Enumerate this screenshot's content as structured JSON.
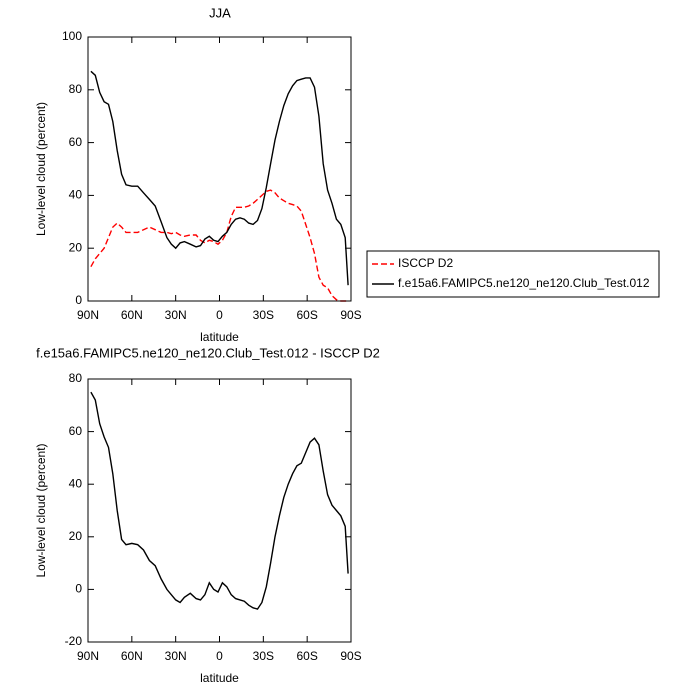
{
  "chart_data": [
    {
      "type": "line",
      "title": "JJA",
      "y_label": "Low-level cloud (percent)",
      "x_label": "latitude",
      "x": [
        88,
        85,
        82,
        79,
        76,
        73,
        70,
        67,
        64,
        60,
        56,
        52,
        48,
        44,
        40,
        36,
        33,
        30,
        27,
        24,
        20,
        16,
        13,
        10,
        7,
        4,
        1,
        -2,
        -5,
        -8,
        -11,
        -14,
        -17,
        -20,
        -23,
        -26,
        -29,
        -32,
        -35,
        -38,
        -41,
        -44,
        -47,
        -50,
        -53,
        -56,
        -59,
        -62,
        -65,
        -68,
        -71,
        -74,
        -77,
        -80,
        -83,
        -86,
        -88
      ],
      "series": [
        {
          "name": "ISCCP D2",
          "color": "#ff0000",
          "dashed": true,
          "values": [
            13,
            16,
            18,
            20,
            24,
            28,
            29.5,
            28,
            26,
            26,
            26,
            27,
            28,
            27,
            26,
            26,
            25.5,
            26,
            25,
            24.5,
            25,
            25,
            23,
            22,
            23,
            22.5,
            21.5,
            23,
            26,
            32,
            35.5,
            35.5,
            35.5,
            36,
            37,
            38.5,
            40,
            41.5,
            42,
            41,
            39,
            38,
            37,
            36.5,
            36,
            34,
            29,
            24,
            18,
            9,
            6,
            5,
            2,
            0.5,
            0,
            0,
            0
          ]
        },
        {
          "name": "f.e15a6.FAMIPC5.ne120_ne120.Club_Test.012",
          "color": "#000000",
          "dashed": false,
          "values": [
            87,
            85.5,
            79,
            75.5,
            74.5,
            68,
            57,
            48,
            44,
            43.5,
            43.5,
            41,
            38.5,
            36,
            30,
            24,
            21.5,
            20,
            22,
            22.5,
            21.5,
            20.5,
            21,
            23.5,
            24.5,
            23,
            22.5,
            24.5,
            26,
            29,
            31,
            31.5,
            31,
            29.5,
            29,
            30.5,
            35,
            43,
            52,
            61,
            68,
            74,
            78.5,
            81.5,
            83.5,
            84,
            84.5,
            84.5,
            81,
            70,
            52,
            42,
            37,
            31,
            29,
            24,
            6
          ]
        }
      ],
      "xlim": [
        90,
        -90
      ],
      "xticks": [
        {
          "value": 90,
          "label": "90N"
        },
        {
          "value": 60,
          "label": "60N"
        },
        {
          "value": 30,
          "label": "30N"
        },
        0,
        {
          "value": -30,
          "label": "30S"
        },
        {
          "value": -60,
          "label": "60S"
        },
        {
          "value": -90,
          "label": "90S"
        }
      ],
      "ylim": [
        0,
        100
      ],
      "yticks": [
        0,
        20,
        40,
        60,
        80,
        100
      ],
      "legend": "outside-right"
    },
    {
      "type": "line",
      "title": "f.e15a6.FAMIPC5.ne120_ne120.Club_Test.012 - ISCCP D2",
      "y_label": "Low-level cloud (percent)",
      "x_label": "latitude",
      "x": [
        88,
        85,
        82,
        79,
        76,
        73,
        70,
        67,
        64,
        60,
        56,
        52,
        48,
        44,
        40,
        36,
        33,
        30,
        27,
        24,
        20,
        16,
        13,
        10,
        7,
        4,
        1,
        -2,
        -5,
        -8,
        -11,
        -14,
        -17,
        -20,
        -23,
        -26,
        -29,
        -32,
        -35,
        -38,
        -41,
        -44,
        -47,
        -50,
        -53,
        -56,
        -59,
        -62,
        -65,
        -68,
        -71,
        -74,
        -77,
        -80,
        -83,
        -86,
        -88
      ],
      "series": [
        {
          "color": "#000000",
          "dashed": false,
          "values": [
            75,
            72,
            63,
            58,
            54,
            44,
            30,
            19,
            17,
            17.5,
            17,
            15,
            11,
            9,
            4,
            0,
            -2,
            -4,
            -5,
            -3,
            -1.5,
            -3.5,
            -4,
            -2,
            2.5,
            0,
            -1,
            2.5,
            1,
            -2,
            -3.5,
            -4,
            -4.5,
            -6,
            -7,
            -7.5,
            -5,
            1,
            10,
            20,
            28,
            35,
            40,
            44,
            47,
            48,
            52,
            56,
            57.5,
            55,
            45,
            36,
            32,
            30,
            28,
            24,
            6
          ]
        }
      ],
      "xlim": [
        90,
        -90
      ],
      "xticks": [
        {
          "value": 90,
          "label": "90N"
        },
        {
          "value": 60,
          "label": "60N"
        },
        {
          "value": 30,
          "label": "30N"
        },
        0,
        {
          "value": -30,
          "label": "30S"
        },
        {
          "value": -60,
          "label": "60S"
        },
        {
          "value": -90,
          "label": "90S"
        }
      ],
      "ylim": [
        -20,
        80
      ],
      "yticks": [
        -20,
        0,
        20,
        40,
        60,
        80
      ]
    }
  ]
}
